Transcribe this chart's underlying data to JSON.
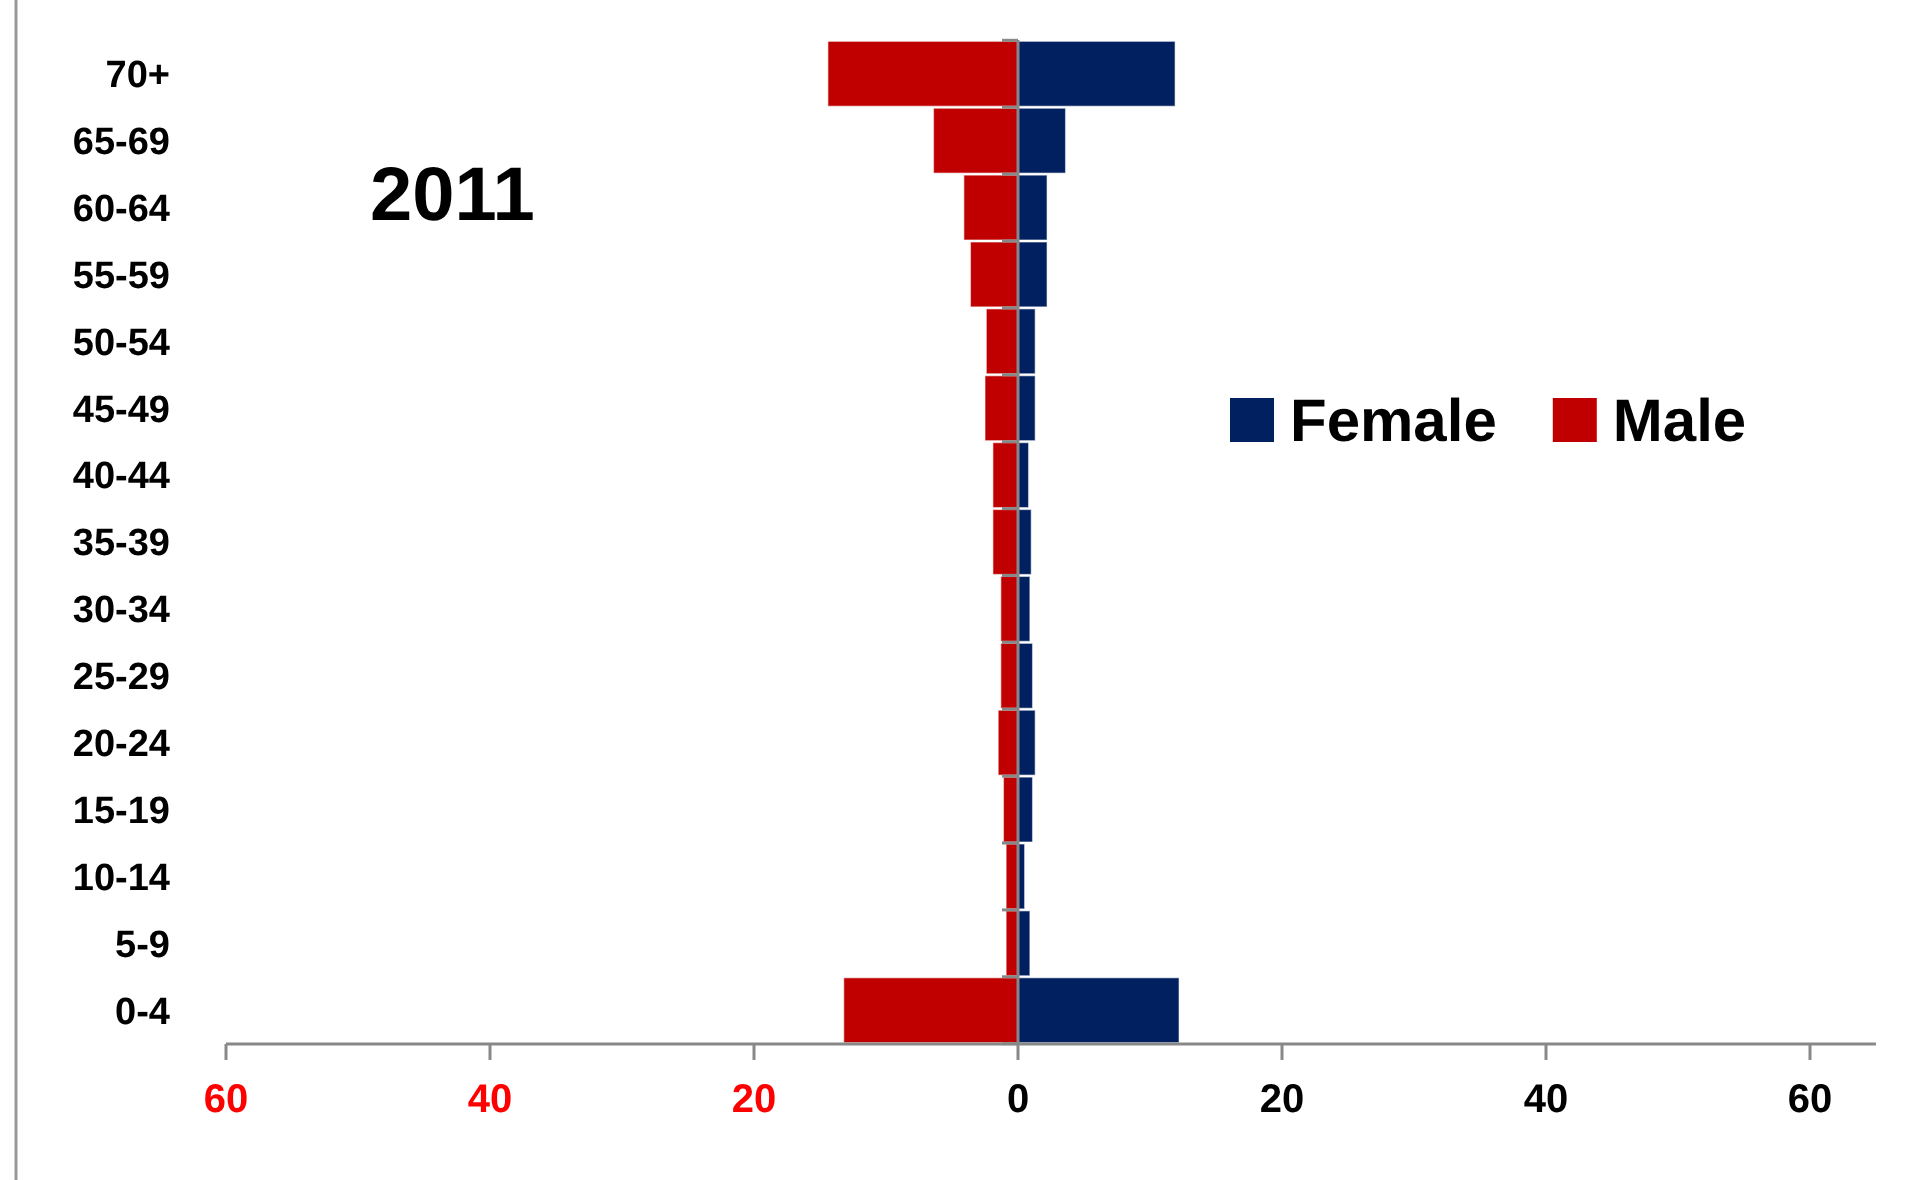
{
  "chart_data": {
    "type": "bar",
    "orientation": "horizontal",
    "stacked": true,
    "title": "2011",
    "categories": [
      "70+",
      "65-69",
      "60-64",
      "55-59",
      "50-54",
      "45-49",
      "40-44",
      "35-39",
      "30-34",
      "25-29",
      "20-24",
      "15-19",
      "10-14",
      "5-9",
      "0-4"
    ],
    "series": [
      {
        "name": "Female",
        "color": "#002060",
        "values": [
          11.9,
          3.6,
          2.2,
          2.2,
          1.3,
          1.3,
          0.8,
          1.0,
          0.9,
          1.1,
          1.3,
          1.1,
          0.5,
          0.9,
          12.2
        ]
      },
      {
        "name": "Male",
        "color": "#c00000",
        "values": [
          -14.4,
          -6.4,
          -4.1,
          -3.6,
          -2.4,
          -2.5,
          -1.9,
          -1.9,
          -1.3,
          -1.3,
          -1.5,
          -1.1,
          -0.9,
          -0.9,
          -13.2
        ]
      }
    ],
    "xlim": [
      -60,
      65
    ],
    "xticks": [
      {
        "value": -60,
        "label": "60"
      },
      {
        "value": -40,
        "label": "40"
      },
      {
        "value": -20,
        "label": "20"
      },
      0,
      20,
      40,
      60
    ],
    "legend": "right"
  }
}
